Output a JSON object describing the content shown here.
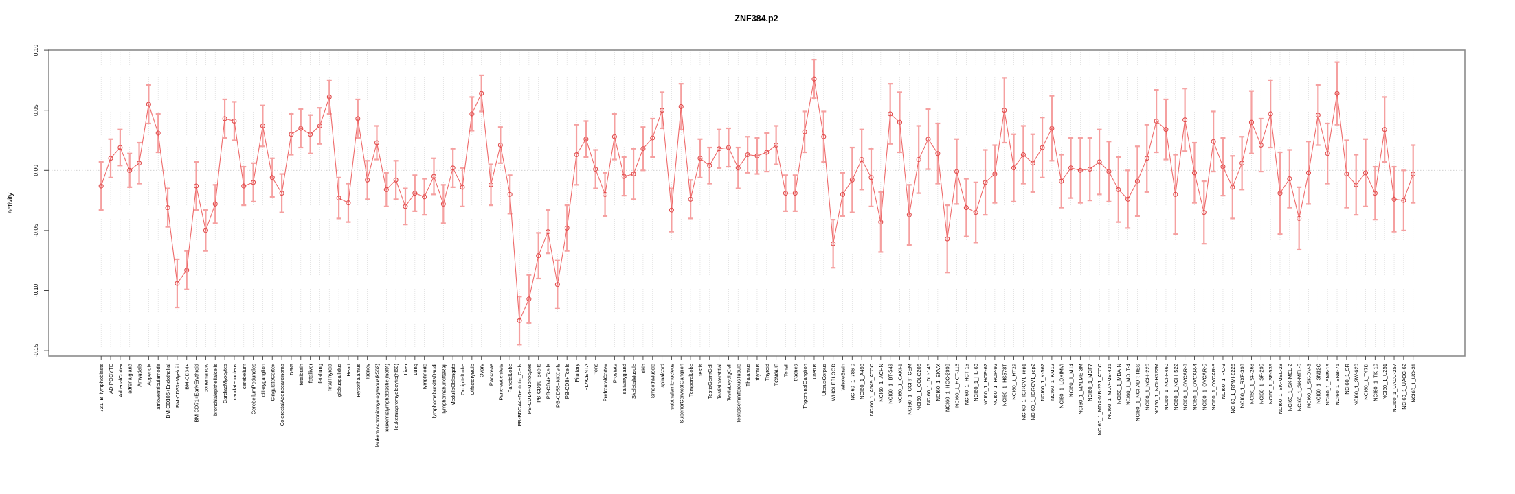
{
  "title": "ZNF384.p2",
  "ylabel": "activity",
  "colors": {
    "line": "#ee6a6a",
    "point_stroke": "#e04b4b",
    "errorbar": "#f5a0a0",
    "box": "#8a8a8a",
    "grid": "#d9d9d9",
    "zero_line": "#cccccc",
    "text": "#000000"
  },
  "chart_data": {
    "type": "line",
    "title": "ZNF384.p2",
    "xlabel": "",
    "ylabel": "activity",
    "ylim": [
      -0.155,
      0.102
    ],
    "yticks": [
      0.1,
      0.05,
      0.0,
      -0.05,
      -0.1,
      -0.15
    ],
    "ytick_labels": [
      "0.10",
      "0.05",
      "0.00",
      "-0.05",
      "-0.10",
      "-0.15"
    ],
    "grid": "vertical dotted gridline per category, dotted horizontal line at zero",
    "legend_position": "none",
    "marker": "open-circle",
    "error_bars": true,
    "categories": [
      "721_B_lymphoblasts",
      "ADIPOCYTE",
      "AdrenalCortex",
      "adrenalgland",
      "Amygdala",
      "Appendix",
      "atrioventricularnode",
      "BM-CD105+Endothelial",
      "BM-CD33+Myeloid",
      "BM-CD34+",
      "BM-CD71+EarlyErythroid",
      "bonemarrow",
      "bronchialepithelialcells",
      "CardiacMyocytes",
      "caudatenucleus",
      "cerebellum",
      "CerebellumPeduncles",
      "ciliaryganglion",
      "CingulateCortex",
      "ColorectalAdenocarcinoma",
      "DRG",
      "fetalbrain",
      "fetalliver",
      "fetallung",
      "fetalThyroid",
      "globuspallidus",
      "Heart",
      "Hypothalamus",
      "kidney",
      "leukemiachronicmyelogenous(k562)",
      "leukemialymphoblastic(molt4)",
      "leukemiapromyelocytic(hl60)",
      "Liver",
      "Lung",
      "lymphnode",
      "lymphomaburkittsDaudi",
      "lymphomaburkittsRaji",
      "MedullaOblongata",
      "OccipitalLobe",
      "OlfactoryBulb",
      "Ovary",
      "Pancreas",
      "PancreaticIslets",
      "ParietalLobe",
      "PB-BDCA4+Dentritic_Cells",
      "PB-CD14+Monocytes",
      "PB-CD19+Bcells",
      "PB-CD4+Tcells",
      "PB-CD56+NKCells",
      "PB-CD8+Tcells",
      "Pituitary",
      "PLACENTA",
      "Pons",
      "PrefrontalCortex",
      "Prostate",
      "salivarygland",
      "SkeletalMuscle",
      "skin",
      "SmoothMuscle",
      "spinalcord",
      "subthalamicnucleus",
      "SuperiorCervicalGanglion",
      "TemporalLobe",
      "testis",
      "TestisGermCell",
      "TestisInterstitial",
      "TestisLeydigCell",
      "TestisSeminiferousTubule",
      "Thalamus",
      "thymus",
      "Thyroid",
      "TONGUE",
      "Tonsil",
      "trachea",
      "TrigeminalGanglion",
      "Uterus",
      "UterusCorpus",
      "WHOLEBLOOD",
      "WholeBrain",
      "NCI60_1_786-0",
      "NCI60_1_A498",
      "NCI60_1_A549_ATCC",
      "NCI60_1_ACHN",
      "NCI60_1_BT-549",
      "NCI60_1_CAKI-1",
      "NCI60_1_CCRF-CEM",
      "NCI60_1_COLO205",
      "NCI60_1_DU-145",
      "NCI60_1_EKVX",
      "NCI60_1_HCC-2998",
      "NCI60_1_HCT-116",
      "NCI60_1_HCT-15",
      "NCI60_1_HL-60",
      "NCI60_1_HOP-62",
      "NCI60_1_HOP-92",
      "NCI60_1_HS578T",
      "NCI60_1_HT29",
      "NCI60_1_IGROV1_rep1",
      "NCI60_1_IGROV1_rep2",
      "NCI60_1_K-562",
      "NCI60_1_KM12",
      "NCI60_1_LOXIMVI",
      "NCI60_1_M14",
      "NCI60_1_MALME-3M",
      "NCI60_1_MCF7",
      "NCI60_1_MDA-MB-231_ATCC",
      "NCI60_1_MDA-MB-435",
      "NCI60_1_MDA-N",
      "NCI60_1_MOLT-4",
      "NCI60_1_NCI-ADR-RES",
      "NCI60_1_NCI-H226",
      "NCI60_1_NCI-H322M",
      "NCI60_1_NCI-H460",
      "NCI60_1_NCI-H522",
      "NCI60_1_OVCAR-3",
      "NCI60_1_OVCAR-4",
      "NCI60_1_OVCAR-5",
      "NCI60_1_OVCAR-8",
      "NCI60_1_PC-3",
      "NCI60_1_RPMI-8226",
      "NCI60_1_RXF-393",
      "NCI60_1_SF-268",
      "NCI60_1_SF-295",
      "NCI60_1_SF-539",
      "NCI60_1_SK-MEL-28",
      "NCI60_1_SK-MEL-2",
      "NCI60_1_SK-MEL-5",
      "NCI60_1_SK-OV-3",
      "NCI60_1_SN12C",
      "NCI60_1_SNB-19",
      "NCI60_1_SNB-75",
      "NCI60_1_SR",
      "NCI60_1_SW-620",
      "NCI60_1_T47D",
      "NCI60_1_TK-10",
      "NCI60_1_U251",
      "NCI60_1_UACC-257",
      "NCI60_1_UACC-62",
      "NCI60_1_UO-31"
    ],
    "values": [
      -0.013,
      0.01,
      0.019,
      0.0,
      0.006,
      0.055,
      0.031,
      -0.031,
      -0.094,
      -0.083,
      -0.013,
      -0.05,
      -0.028,
      0.043,
      0.041,
      -0.013,
      -0.01,
      0.037,
      -0.006,
      -0.019,
      0.03,
      0.035,
      0.03,
      0.037,
      0.061,
      -0.023,
      -0.027,
      0.043,
      -0.008,
      0.023,
      -0.016,
      -0.008,
      -0.03,
      -0.019,
      -0.022,
      -0.005,
      -0.028,
      0.002,
      -0.014,
      0.047,
      0.064,
      -0.012,
      0.021,
      -0.02,
      -0.125,
      -0.107,
      -0.071,
      -0.051,
      -0.095,
      -0.048,
      0.013,
      0.026,
      0.001,
      -0.02,
      0.028,
      -0.005,
      -0.003,
      0.018,
      0.027,
      0.05,
      -0.033,
      0.053,
      -0.024,
      0.01,
      0.004,
      0.018,
      0.019,
      0.002,
      0.013,
      0.012,
      0.015,
      0.021,
      -0.019,
      -0.019,
      0.032,
      0.076,
      0.028,
      -0.061,
      -0.02,
      -0.008,
      0.009,
      -0.006,
      -0.043,
      0.047,
      0.04,
      -0.037,
      0.009,
      0.026,
      0.014,
      -0.057,
      -0.001,
      -0.031,
      -0.035,
      -0.01,
      -0.003,
      0.05,
      0.002,
      0.013,
      0.006,
      0.019,
      0.035,
      -0.009,
      0.002,
      0.0,
      0.001,
      0.007,
      -0.001,
      -0.016,
      -0.024,
      -0.009,
      0.01,
      0.041,
      0.034,
      -0.02,
      0.042,
      -0.002,
      -0.035,
      0.024,
      0.003,
      -0.014,
      0.006,
      0.04,
      0.021,
      0.047,
      -0.019,
      -0.007,
      -0.04,
      -0.002,
      0.046,
      0.014,
      0.064,
      -0.003,
      -0.012,
      -0.002,
      -0.019,
      0.034,
      -0.024,
      -0.025,
      -0.003
    ],
    "errors": [
      0.02,
      0.016,
      0.015,
      0.014,
      0.017,
      0.016,
      0.016,
      0.016,
      0.02,
      0.016,
      0.02,
      0.017,
      0.016,
      0.016,
      0.016,
      0.016,
      0.016,
      0.017,
      0.016,
      0.016,
      0.017,
      0.016,
      0.016,
      0.015,
      0.014,
      0.017,
      0.016,
      0.016,
      0.016,
      0.014,
      0.014,
      0.016,
      0.015,
      0.015,
      0.015,
      0.015,
      0.016,
      0.016,
      0.016,
      0.014,
      0.015,
      0.017,
      0.015,
      0.016,
      0.02,
      0.02,
      0.019,
      0.018,
      0.02,
      0.019,
      0.025,
      0.015,
      0.016,
      0.018,
      0.019,
      0.016,
      0.021,
      0.018,
      0.016,
      0.015,
      0.018,
      0.019,
      0.016,
      0.016,
      0.015,
      0.016,
      0.016,
      0.017,
      0.015,
      0.015,
      0.016,
      0.016,
      0.015,
      0.015,
      0.017,
      0.016,
      0.021,
      0.02,
      0.018,
      0.027,
      0.025,
      0.024,
      0.025,
      0.025,
      0.025,
      0.025,
      0.028,
      0.025,
      0.025,
      0.028,
      0.027,
      0.024,
      0.025,
      0.027,
      0.024,
      0.027,
      0.028,
      0.024,
      0.024,
      0.025,
      0.027,
      0.022,
      0.025,
      0.027,
      0.026,
      0.027,
      0.025,
      0.027,
      0.024,
      0.029,
      0.028,
      0.026,
      0.025,
      0.033,
      0.026,
      0.025,
      0.026,
      0.025,
      0.024,
      0.026,
      0.022,
      0.026,
      0.022,
      0.028,
      0.034,
      0.024,
      0.026,
      0.026,
      0.025,
      0.025,
      0.026,
      0.028,
      0.025,
      0.028,
      0.022,
      0.027,
      0.027,
      0.025,
      0.024
    ]
  }
}
